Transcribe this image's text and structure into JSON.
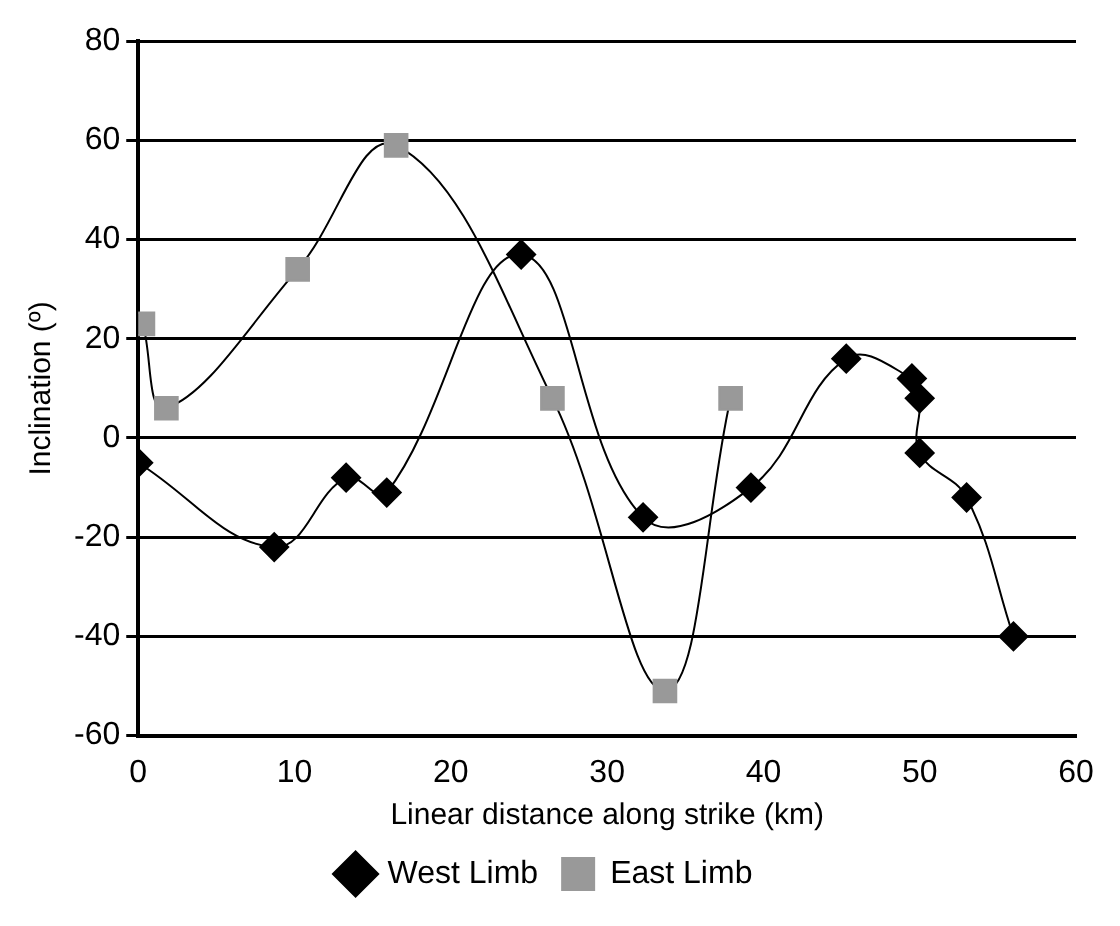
{
  "chart_data": {
    "type": "line",
    "xlabel": "Linear distance along strike (km)",
    "ylabel": "Inclination (º)",
    "xlim": [
      0,
      60
    ],
    "xticks": [
      0,
      10,
      20,
      30,
      40,
      50,
      60
    ],
    "ylim": [
      -60,
      80
    ],
    "yticks": [
      -60,
      -40,
      -20,
      0,
      20,
      40,
      60,
      80
    ],
    "grid": "y",
    "legend": "bottom",
    "series": [
      {
        "name": "West Limb",
        "color": "#000000",
        "marker": "diamond",
        "x": [
          0,
          8.7,
          13.3,
          15.9,
          24.5,
          32.3,
          39.2,
          45.3,
          49.5,
          50,
          50,
          53,
          56
        ],
        "values": [
          -5,
          -22,
          -8,
          -11,
          37,
          -16,
          -10,
          16,
          12,
          8,
          -3,
          -12,
          -40
        ]
      },
      {
        "name": "East Limb",
        "color": "#999999",
        "marker": "square",
        "x": [
          0.3,
          1.8,
          10.2,
          16.5,
          26.5,
          33.7,
          37.9
        ],
        "values": [
          23,
          6,
          34,
          59,
          8,
          -51,
          8
        ]
      }
    ]
  }
}
